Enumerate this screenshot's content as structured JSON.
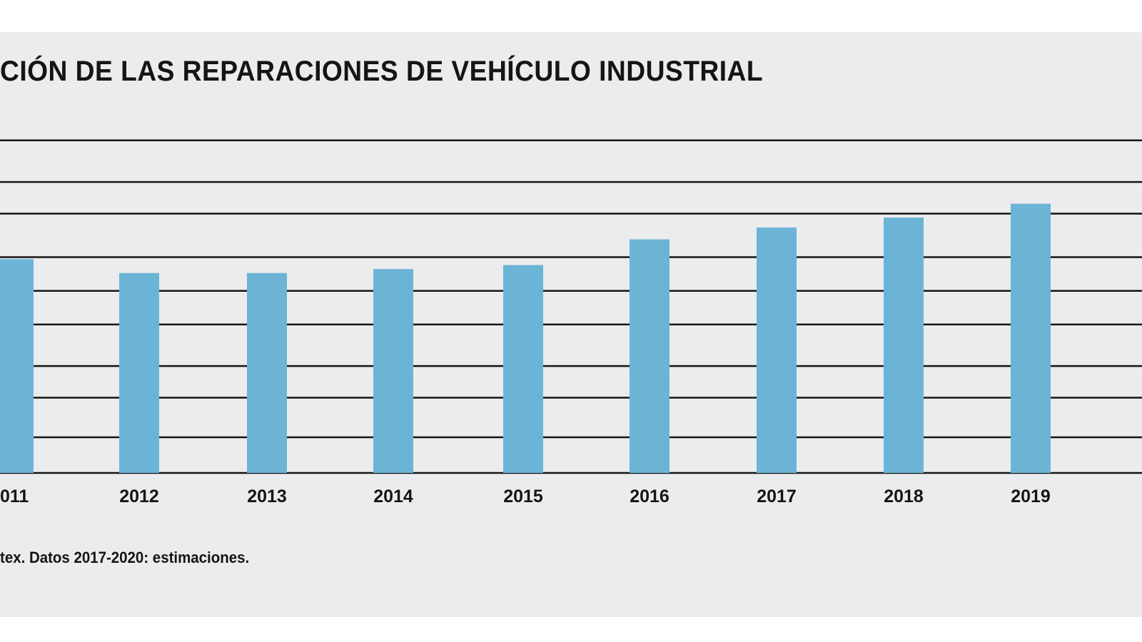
{
  "colors": {
    "panel_background": "#ebecee",
    "bar": "#6cb4d6",
    "gridline": "#151515",
    "text": "#151515"
  },
  "chart_data": {
    "type": "bar",
    "title": "CIÓN DE LAS REPARACIONES DE VEHÍCULO INDUSTRIAL",
    "categories": [
      "011",
      "2012",
      "2013",
      "2014",
      "2015",
      "2016",
      "2017",
      "2018",
      "2019"
    ],
    "series": [
      {
        "values": [
          0.54,
          0.505,
          0.505,
          0.515,
          0.525,
          0.59,
          0.62,
          0.645,
          0.68
        ]
      }
    ],
    "gridlines": [
      0.09,
      0.19,
      0.27,
      0.375,
      0.46,
      0.545,
      0.655,
      0.735,
      0.84
    ],
    "ylim": [
      0,
      1
    ],
    "grid": true,
    "legend": "none",
    "footnote": "tex. Datos 2017-2020: estimaciones."
  }
}
